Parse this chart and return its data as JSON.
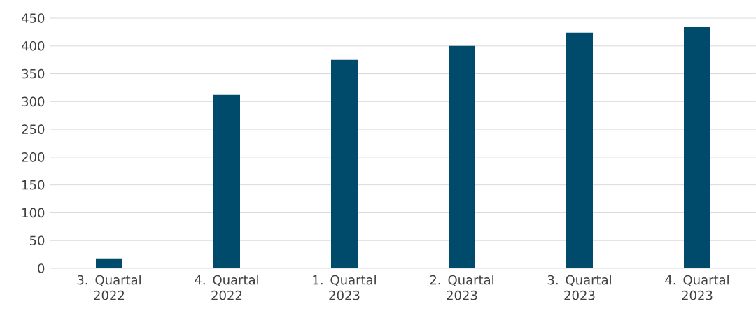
{
  "chart_data": {
    "type": "bar",
    "categories": [
      "3. Quartal 2022",
      "4. Quartal 2022",
      "1. Quartal 2023",
      "2. Quartal 2023",
      "3. Quartal 2023",
      "4. Quartal 2023"
    ],
    "values": [
      18,
      312,
      375,
      400,
      424,
      435
    ],
    "color": "#004a6b",
    "ylim": [
      0,
      450
    ],
    "yticks": [
      0,
      50,
      100,
      150,
      200,
      250,
      300,
      350,
      400,
      450
    ],
    "grid": "y"
  }
}
